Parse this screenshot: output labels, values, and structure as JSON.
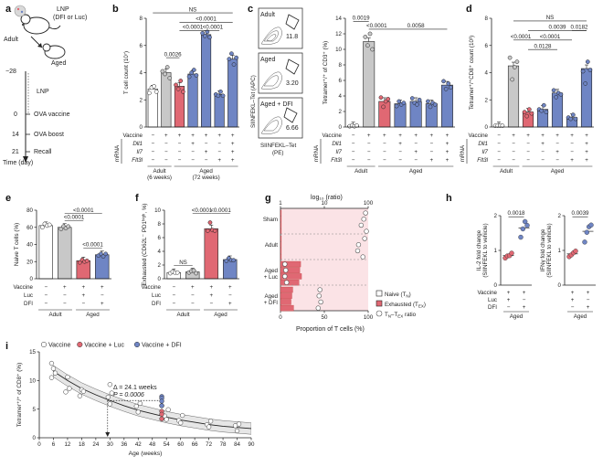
{
  "colors": {
    "white": "#ffffff",
    "grey": "#c8c8c8",
    "red": "#e06873",
    "redDark": "#c03a48",
    "blue": "#6f85c4",
    "blueDark": "#3f5ba6",
    "pink": "#fbe3e6",
    "ink": "#222222"
  },
  "panels": {
    "a": {
      "letter": "a",
      "lnp": "LNP",
      "lnp_sub": "(DFI or Luc)",
      "adult": "Adult",
      "aged": "Aged",
      "day_m28": "−28",
      "day_0": "0",
      "day_14": "14",
      "day_21": "21",
      "lnp_step": "LNP",
      "ova_vaccine": "OVA vaccine",
      "ova_boost": "OVA boost",
      "recall": "Recall",
      "time_label": "Time (day)"
    },
    "b": {
      "letter": "b"
    },
    "c": {
      "letter": "c",
      "flow_titles": [
        "Adult",
        "Aged",
        "Aged + DFI"
      ],
      "flow_values": [
        "11.8",
        "3.20",
        "6.66"
      ],
      "flow_ylabel": "SIINFEKL–Tet (APC)",
      "flow_xlabel": "SIINFEKL–Tet",
      "flow_xlabel2": "(PE)"
    },
    "d": {
      "letter": "d"
    },
    "e": {
      "letter": "e"
    },
    "f": {
      "letter": "f"
    },
    "g": {
      "letter": "g",
      "top_axis_title": "log₁₀ (ratio)",
      "top_ticks": [
        "1",
        "10",
        "100"
      ],
      "bottom_ticks": [
        "0",
        "50",
        "100"
      ],
      "xlabel": "Proportion of T cells (%)",
      "groups": [
        "Sham",
        "Adult",
        "Aged + Luc",
        "Aged + DFI"
      ],
      "legend": [
        "Naive (T",
        "Exhausted (T",
        "T",
        "ratio"
      ],
      "legend_subs": [
        "N",
        ")",
        "EX",
        ")",
        "N",
        "–T",
        "EX"
      ]
    },
    "h": {
      "letter": "h"
    },
    "i": {
      "letter": "i",
      "annotation_delta": "Δ = 24.1 weeks",
      "annotation_p": "P = 0.0006"
    }
  },
  "chart_data": [
    {
      "id": "b",
      "type": "bar",
      "ylabel": "T cell count (10⁷)",
      "ylim": [
        0,
        8
      ],
      "yticks": [
        "0",
        "2",
        "4",
        "6",
        "8"
      ],
      "groups": [
        "Adult\n(6 weeks)",
        "Aged\n(72 weeks)"
      ],
      "row_labels": [
        "Vaccine",
        "Dll1",
        "Il7",
        "Flt3l"
      ],
      "mrna_label": "mRNA",
      "rows": [
        [
          "−",
          "+",
          "+",
          "+",
          "+",
          "+",
          "+"
        ],
        [
          "−",
          "−",
          "−",
          "+",
          "−",
          "−",
          "+"
        ],
        [
          "−",
          "−",
          "−",
          "−",
          "+",
          "−",
          "+"
        ],
        [
          "−",
          "−",
          "−",
          "−",
          "−",
          "+",
          "+"
        ]
      ],
      "values": [
        2.8,
        4.0,
        3.0,
        3.9,
        6.8,
        2.4,
        5.0
      ],
      "colors": [
        "white",
        "grey",
        "red",
        "blue",
        "blue",
        "blue",
        "blue"
      ],
      "points": [
        [
          2.5,
          2.9,
          3.0,
          2.6
        ],
        [
          4.1,
          3.9,
          4.4,
          3.6
        ],
        [
          3.1,
          2.8,
          3.4,
          2.6
        ],
        [
          3.7,
          4.0,
          4.2,
          3.8
        ],
        [
          6.9,
          6.7,
          7.0,
          6.6
        ],
        [
          2.4,
          2.3,
          2.6,
          2.3
        ],
        [
          5.0,
          5.4,
          4.6,
          5.1
        ]
      ],
      "sig": [
        {
          "a": 0,
          "b": 6,
          "label": "NS",
          "y": 8.4
        },
        {
          "a": 2,
          "b": 6,
          "label": "<0.0001",
          "y": 7.7
        },
        {
          "a": 2,
          "b": 4,
          "label": "<0.0001",
          "y": 7.1
        },
        {
          "a": 4,
          "b": 5,
          "label": "<0.0001",
          "y": 7.1
        },
        {
          "a": 1,
          "b": 2,
          "label": "0.0026",
          "y": 5.1
        }
      ]
    },
    {
      "id": "c",
      "type": "bar",
      "ylabel": "Tetramer⁺/⁺ of CD3⁺ (%)",
      "ylim": [
        0,
        14
      ],
      "yticks": [
        "0",
        "2",
        "4",
        "6",
        "8",
        "10",
        "12",
        "14"
      ],
      "groups": [
        "Adult",
        "Aged"
      ],
      "row_labels": [
        "Vaccine",
        "Dll1",
        "Il7",
        "Flt3l"
      ],
      "mrna_label": "mRNA",
      "rows": [
        [
          "−",
          "+",
          "+",
          "+",
          "+",
          "+",
          "+"
        ],
        [
          "−",
          "−",
          "−",
          "+",
          "−",
          "−",
          "+"
        ],
        [
          "−",
          "−",
          "−",
          "−",
          "+",
          "−",
          "+"
        ],
        [
          "−",
          "−",
          "−",
          "−",
          "−",
          "+",
          "+"
        ]
      ],
      "values": [
        0.15,
        11.0,
        3.3,
        3.0,
        3.3,
        3.0,
        5.4
      ],
      "colors": [
        "white",
        "grey",
        "red",
        "blue",
        "blue",
        "blue",
        "blue"
      ],
      "points": [
        [
          0.1,
          0.2,
          0.1,
          0.2
        ],
        [
          11.6,
          10.5,
          12.0,
          10.0
        ],
        [
          3.8,
          2.6,
          3.3,
          3.6
        ],
        [
          2.7,
          3.3,
          2.9,
          3.1
        ],
        [
          3.7,
          3.1,
          2.9,
          3.5
        ],
        [
          3.3,
          2.6,
          3.1,
          2.9
        ],
        [
          5.9,
          4.9,
          5.6,
          5.1
        ]
      ],
      "sig": [
        {
          "a": 0,
          "b": 1,
          "label": "0.0019",
          "y": 13.6
        },
        {
          "a": 1,
          "b": 2,
          "label": "<0.0001",
          "y": 12.6
        },
        {
          "a": 2,
          "b": 6,
          "label": "0.0058",
          "y": 12.6
        }
      ]
    },
    {
      "id": "d",
      "type": "bar",
      "ylabel": "Tetramer⁺/⁺CD8⁺ count (10³)",
      "ylim": [
        0,
        8
      ],
      "yticks": [
        "0",
        "2",
        "4",
        "6",
        "8"
      ],
      "groups": [
        "Adult",
        "Aged"
      ],
      "row_labels": [
        "Vaccine",
        "Dll1",
        "Il7",
        "Flt3l"
      ],
      "mrna_label": "mRNA",
      "rows": [
        [
          "−",
          "+",
          "+",
          "+",
          "+",
          "+",
          "+"
        ],
        [
          "−",
          "−",
          "−",
          "+",
          "−",
          "−",
          "+"
        ],
        [
          "−",
          "−",
          "−",
          "−",
          "+",
          "−",
          "+"
        ],
        [
          "−",
          "−",
          "−",
          "−",
          "−",
          "+",
          "+"
        ]
      ],
      "values": [
        0.1,
        4.5,
        1.1,
        1.3,
        2.5,
        0.7,
        4.3
      ],
      "colors": [
        "white",
        "grey",
        "red",
        "blue",
        "blue",
        "blue",
        "blue"
      ],
      "points": [
        [
          0.1,
          0.1,
          0.1,
          0.1
        ],
        [
          5.1,
          3.5,
          4.4,
          4.8
        ],
        [
          1.1,
          0.8,
          1.3,
          1.0
        ],
        [
          1.3,
          1.2,
          1.6,
          1.1
        ],
        [
          2.7,
          2.2,
          2.5,
          2.4
        ],
        [
          0.7,
          0.6,
          0.9,
          0.6
        ],
        [
          4.1,
          3.2,
          4.8,
          4.2
        ]
      ],
      "sig": [
        {
          "a": 1,
          "b": 6,
          "label": "NS",
          "y": 7.8
        },
        {
          "a": 2,
          "b": 6,
          "label": "0.0039",
          "y": 7.1
        },
        {
          "a": 5,
          "b": 6,
          "label": "0.0182",
          "y": 7.1
        },
        {
          "a": 1,
          "b": 2,
          "label": "<0.0001",
          "y": 6.4
        },
        {
          "a": 2,
          "b": 5,
          "label": "<0.0001",
          "y": 6.4
        },
        {
          "a": 2,
          "b": 4,
          "label": "0.0128",
          "y": 5.7
        }
      ]
    },
    {
      "id": "e",
      "type": "bar",
      "ylabel": "Naive T cells (%)",
      "ylim": [
        0,
        80
      ],
      "yticks": [
        "0",
        "20",
        "40",
        "60",
        "80"
      ],
      "groups": [
        "Adult",
        "Aged"
      ],
      "row_labels": [
        "Vaccine",
        "Luc",
        "DFI"
      ],
      "rows": [
        [
          "−",
          "+",
          "+",
          "+"
        ],
        [
          "−",
          "−",
          "+",
          "−"
        ],
        [
          "−",
          "−",
          "−",
          "+"
        ]
      ],
      "values": [
        62,
        60,
        21,
        28
      ],
      "colors": [
        "white",
        "grey",
        "red",
        "blue"
      ],
      "points": [
        [
          60,
          64,
          62,
          63
        ],
        [
          58,
          61,
          59,
          61
        ],
        [
          19,
          22,
          20,
          21
        ],
        [
          27,
          29,
          26,
          29
        ]
      ],
      "sig": [
        {
          "a": 1,
          "b": 3,
          "label": "<0.0001",
          "y": 76
        },
        {
          "a": 1,
          "b": 2,
          "label": "<0.0001",
          "y": 68
        },
        {
          "a": 2,
          "b": 3,
          "label": "<0.0001",
          "y": 36
        }
      ]
    },
    {
      "id": "f",
      "type": "bar",
      "ylabel": "Exhausted (CD62L⁻ PD1ʰⁱᵍʰ, %)",
      "ylim": [
        0,
        10
      ],
      "yticks": [
        "0",
        "2",
        "4",
        "6",
        "8",
        "10"
      ],
      "groups": [
        "Adult",
        "Aged"
      ],
      "row_labels": [
        "Vaccine",
        "Luc",
        "DFI"
      ],
      "rows": [
        [
          "−",
          "+",
          "+",
          "+"
        ],
        [
          "−",
          "−",
          "+",
          "−"
        ],
        [
          "−",
          "−",
          "−",
          "+"
        ]
      ],
      "values": [
        0.9,
        1.0,
        7.3,
        2.8
      ],
      "colors": [
        "white",
        "grey",
        "red",
        "blue"
      ],
      "points": [
        [
          0.8,
          1.0,
          0.9,
          0.9
        ],
        [
          0.9,
          1.1,
          1.2,
          0.8
        ],
        [
          7.0,
          8.2,
          7.1,
          7.0
        ],
        [
          2.6,
          3.0,
          2.7,
          2.7
        ]
      ],
      "sig": [
        {
          "a": 1,
          "b": 2,
          "label": "<0.0001",
          "y": 9.5
        },
        {
          "a": 2,
          "b": 3,
          "label": "<0.0001",
          "y": 9.5
        },
        {
          "a": 0,
          "b": 1,
          "label": "NS",
          "y": 1.9
        }
      ]
    },
    {
      "id": "g",
      "type": "bar",
      "xlabel": "Proportion of T cells (%)",
      "xlim": [
        0,
        100
      ],
      "top_axis": {
        "title": "log₁₀ (ratio)",
        "range": [
          0,
          100
        ],
        "ticks": [
          "1",
          "10",
          "100"
        ]
      },
      "groups": [
        "Sham",
        "Adult",
        "Aged + Luc",
        "Aged + DFI"
      ],
      "series": [
        {
          "name": "Naive (TN)",
          "values": [
            [
              98,
              97,
              98,
              97
            ],
            [
              96,
              95,
              96,
              95
            ],
            [
              78,
              79,
              80,
              77
            ],
            [
              82,
              83,
              81,
              84
            ]
          ]
        },
        {
          "name": "Exhausted (TEX)",
          "values": [
            [
              1,
              1,
              1,
              1
            ],
            [
              1,
              1,
              1,
              1
            ],
            [
              23,
              22,
              24,
              21
            ],
            [
              14,
              13,
              12,
              15
            ]
          ]
        },
        {
          "name": "TN–TEX ratio",
          "values": [
            [
              97,
              95,
              92,
              98
            ],
            [
              96,
              89,
              88,
              94
            ],
            [
              5,
              6,
              5,
              7
            ],
            [
              45,
              44,
              46,
              43
            ]
          ]
        }
      ]
    },
    {
      "id": "h1",
      "type": "scatter",
      "ylabel": "IL-2 fold change (SIINFEKL to vehicle)",
      "ylim": [
        0,
        2
      ],
      "yticks": [
        "0",
        "1",
        "2"
      ],
      "groups": [
        "Aged"
      ],
      "row_labels": [
        "Vaccine",
        "Luc",
        "DFI"
      ],
      "rows": [
        [
          "+",
          "+"
        ],
        [
          "+",
          "−"
        ],
        [
          "−",
          "+"
        ]
      ],
      "means": [
        0.85,
        1.65
      ],
      "points": [
        [
          0.78,
          0.84,
          0.85,
          0.92
        ],
        [
          1.38,
          1.62,
          1.83,
          1.72
        ]
      ],
      "colors": [
        "red",
        "blue"
      ],
      "sig": [
        {
          "a": 0,
          "b": 1,
          "label": "0.0018",
          "y": 1.97
        }
      ]
    },
    {
      "id": "h2",
      "type": "scatter",
      "ylabel": "IFNγ fold change (SIINFEKL to vehicle)",
      "ylim": [
        0,
        2
      ],
      "yticks": [
        "0",
        "1",
        "2"
      ],
      "groups": [
        "Aged"
      ],
      "row_labels": [
        "Vaccine",
        "Luc",
        "DFI"
      ],
      "rows": [
        [
          "+",
          "+"
        ],
        [
          "+",
          "−"
        ],
        [
          "−",
          "+"
        ]
      ],
      "means": [
        0.9,
        1.55
      ],
      "points": [
        [
          0.82,
          0.87,
          0.93,
          0.98
        ],
        [
          1.24,
          1.52,
          1.68,
          1.73
        ]
      ],
      "colors": [
        "red",
        "blue"
      ],
      "sig": [
        {
          "a": 0,
          "b": 1,
          "label": "0.0039",
          "y": 1.97
        }
      ]
    },
    {
      "id": "i",
      "type": "scatter",
      "xlabel": "Age (weeks)",
      "ylabel": "Tetramer⁺/⁺ of CD8⁺ (%)",
      "xlim": [
        0,
        90
      ],
      "ylim": [
        0,
        15
      ],
      "xticks": [
        "0",
        "6",
        "12",
        "18",
        "24",
        "30",
        "36",
        "42",
        "48",
        "54",
        "60",
        "66",
        "72",
        "78",
        "84",
        "90"
      ],
      "yticks": [
        "0",
        "5",
        "10",
        "15"
      ],
      "series": [
        {
          "name": "Vaccine",
          "points": [
            [
              6,
              13.0
            ],
            [
              6,
              12.1
            ],
            [
              6,
              11.3
            ],
            [
              6,
              10.5
            ],
            [
              12,
              10.6
            ],
            [
              12,
              8.6
            ],
            [
              12,
              8.0
            ],
            [
              18,
              8.4
            ],
            [
              18,
              8.1
            ],
            [
              18,
              7.3
            ],
            [
              30,
              9.3
            ],
            [
              30,
              7.8
            ],
            [
              30,
              7.1
            ],
            [
              30,
              5.9
            ],
            [
              42,
              6.0
            ],
            [
              42,
              5.5
            ],
            [
              42,
              4.5
            ],
            [
              54,
              4.9
            ],
            [
              54,
              3.8
            ],
            [
              54,
              3.2
            ],
            [
              60,
              3.9
            ],
            [
              60,
              3.0
            ],
            [
              60,
              2.6
            ],
            [
              72,
              2.9
            ],
            [
              72,
              2.3
            ],
            [
              72,
              1.9
            ],
            [
              84,
              2.4
            ],
            [
              84,
              2.1
            ],
            [
              84,
              1.2
            ]
          ]
        },
        {
          "name": "Vaccine + Luc",
          "points": [
            [
              52,
              5.6
            ],
            [
              52,
              4.6
            ],
            [
              52,
              4.1
            ],
            [
              52,
              3.3
            ]
          ]
        },
        {
          "name": "Vaccine + DFI",
          "points": [
            [
              52,
              7.2
            ],
            [
              52,
              6.9
            ],
            [
              52,
              6.4
            ],
            [
              52,
              5.6
            ]
          ]
        }
      ],
      "fit": [
        [
          6,
          11.6
        ],
        [
          12,
          10.0
        ],
        [
          18,
          8.6
        ],
        [
          24,
          7.5
        ],
        [
          30,
          6.5
        ],
        [
          36,
          5.6
        ],
        [
          42,
          4.8
        ],
        [
          48,
          4.2
        ],
        [
          54,
          3.6
        ],
        [
          60,
          3.1
        ],
        [
          66,
          2.7
        ],
        [
          72,
          2.3
        ],
        [
          78,
          2.0
        ],
        [
          84,
          1.8
        ],
        [
          90,
          1.6
        ]
      ],
      "band": 1.0,
      "reference": {
        "x_from": 29,
        "x_to": 52,
        "y": 6.5
      },
      "legend": [
        "Vaccine",
        "Vaccine + Luc",
        "Vaccine + DFI"
      ]
    }
  ]
}
